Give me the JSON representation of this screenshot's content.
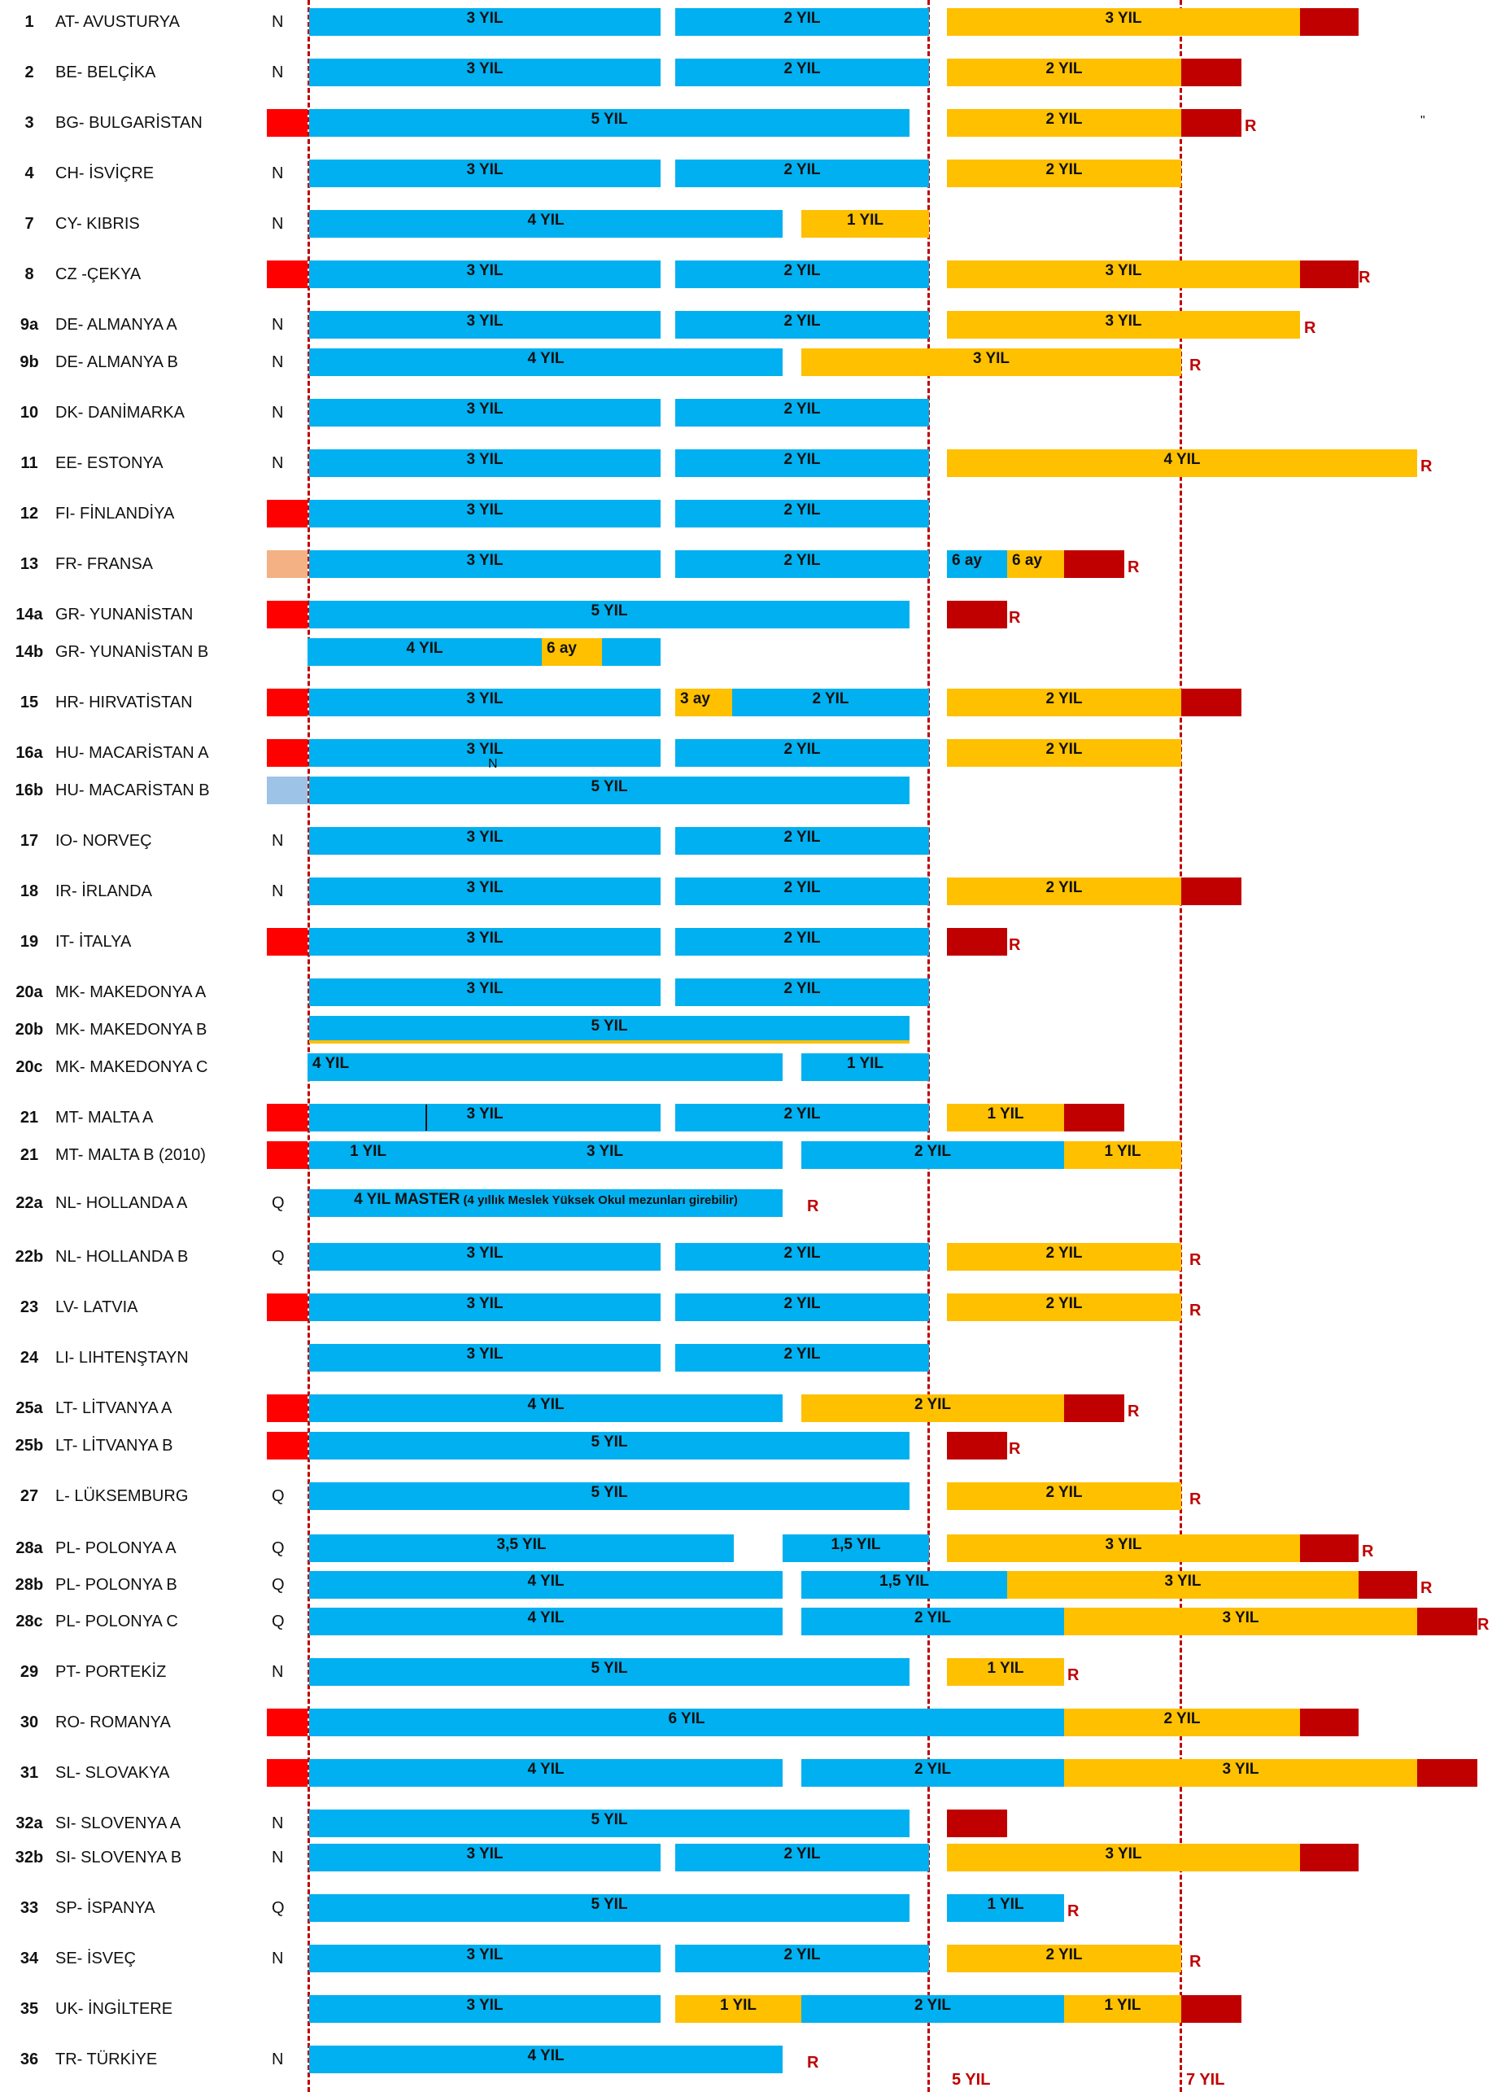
{
  "colors": {
    "education": "#00b0f0",
    "practice": "#ffc000",
    "exam": "#c00000",
    "prereq": "#ff0000",
    "prereq_fr": "#f4b183",
    "prereq_hu": "#9dc3e6",
    "guide": "#c00000"
  },
  "axis": {
    "labels": [
      {
        "key": "5",
        "text": "5 YIL"
      },
      {
        "key": "7",
        "text": "7 YIL"
      }
    ]
  },
  "stray_marks": [
    {
      "id": "quote",
      "text": "\""
    },
    {
      "id": "n",
      "text": "N"
    }
  ],
  "rows": [
    {
      "num": "1",
      "name": "AT- AVUSTURYA",
      "code": "N",
      "segs": [
        {
          "type": "education",
          "label": "3 YIL"
        },
        {
          "type": "education",
          "label": "2 YIL"
        },
        {
          "type": "practice",
          "label": "3 YIL"
        },
        {
          "type": "exam",
          "label": ""
        }
      ],
      "r": ""
    },
    {
      "num": "2",
      "name": "BE- BELÇİKA",
      "code": "N",
      "segs": [
        {
          "type": "education",
          "label": "3 YIL"
        },
        {
          "type": "education",
          "label": "2 YIL"
        },
        {
          "type": "practice",
          "label": "2 YIL"
        },
        {
          "type": "exam",
          "label": ""
        }
      ],
      "r": ""
    },
    {
      "num": "3",
      "name": "BG- BULGARİSTAN",
      "code": "",
      "segs": [
        {
          "type": "prereq",
          "label": ""
        },
        {
          "type": "education",
          "label": "5 YIL"
        },
        {
          "type": "practice",
          "label": "2 YIL"
        },
        {
          "type": "exam",
          "label": ""
        }
      ],
      "r": "R"
    },
    {
      "num": "4",
      "name": "CH- İSVİÇRE",
      "code": "N",
      "segs": [
        {
          "type": "education",
          "label": "3 YIL"
        },
        {
          "type": "education",
          "label": "2 YIL"
        },
        {
          "type": "practice",
          "label": "2 YIL"
        }
      ],
      "r": ""
    },
    {
      "num": "7",
      "name": "CY- KIBRIS",
      "code": "N",
      "segs": [
        {
          "type": "education",
          "label": "4 YIL"
        },
        {
          "type": "practice",
          "label": "1 YIL"
        }
      ],
      "r": ""
    },
    {
      "num": "8",
      "name": "CZ -ÇEKYA",
      "code": "",
      "segs": [
        {
          "type": "prereq",
          "label": ""
        },
        {
          "type": "education",
          "label": "3 YIL"
        },
        {
          "type": "education",
          "label": "2 YIL"
        },
        {
          "type": "practice",
          "label": "3 YIL"
        },
        {
          "type": "exam",
          "label": ""
        }
      ],
      "r": "R"
    },
    {
      "num": "9a",
      "name": "DE- ALMANYA A",
      "code": "N",
      "segs": [
        {
          "type": "education",
          "label": "3 YIL"
        },
        {
          "type": "education",
          "label": "2 YIL"
        },
        {
          "type": "practice",
          "label": "3 YIL"
        }
      ],
      "r": "R"
    },
    {
      "num": "9b",
      "name": "DE- ALMANYA B",
      "code": "N",
      "segs": [
        {
          "type": "education",
          "label": "4 YIL"
        },
        {
          "type": "practice",
          "label": "3 YIL"
        }
      ],
      "r": "R"
    },
    {
      "num": "10",
      "name": "DK- DANİMARKA",
      "code": "N",
      "segs": [
        {
          "type": "education",
          "label": "3 YIL"
        },
        {
          "type": "education",
          "label": "2 YIL"
        }
      ],
      "r": ""
    },
    {
      "num": "11",
      "name": "EE- ESTONYA",
      "code": "N",
      "segs": [
        {
          "type": "education",
          "label": "3 YIL"
        },
        {
          "type": "education",
          "label": "2 YIL"
        },
        {
          "type": "practice",
          "label": "4  YIL"
        }
      ],
      "r": "R"
    },
    {
      "num": "12",
      "name": "FI- FİNLANDİYA",
      "code": "",
      "segs": [
        {
          "type": "prereq",
          "label": ""
        },
        {
          "type": "education",
          "label": "3 YIL"
        },
        {
          "type": "education",
          "label": "2 YIL"
        }
      ],
      "r": ""
    },
    {
      "num": "13",
      "name": "FR- FRANSA",
      "code": "",
      "segs": [
        {
          "type": "prereq_fr",
          "label": ""
        },
        {
          "type": "education",
          "label": "3 YIL"
        },
        {
          "type": "education",
          "label": "2 YIL"
        },
        {
          "type": "education",
          "label": "6 ay"
        },
        {
          "type": "practice",
          "label": "6 ay"
        },
        {
          "type": "exam",
          "label": ""
        }
      ],
      "r": "R"
    },
    {
      "num": "14a",
      "name": "GR- YUNANİSTAN",
      "code": "",
      "segs": [
        {
          "type": "prereq",
          "label": ""
        },
        {
          "type": "education",
          "label": "5 YIL"
        },
        {
          "type": "exam",
          "label": ""
        }
      ],
      "r": "R"
    },
    {
      "num": "14b",
      "name": "GR- YUNANİSTAN B",
      "code": "",
      "segs": [
        {
          "type": "education",
          "label": "4 YIL"
        },
        {
          "type": "practice",
          "label": "6 ay"
        },
        {
          "type": "education",
          "label": ""
        }
      ],
      "r": ""
    },
    {
      "num": "15",
      "name": "HR- HIRVATİSTAN",
      "code": "",
      "segs": [
        {
          "type": "prereq",
          "label": ""
        },
        {
          "type": "education",
          "label": "3 YIL"
        },
        {
          "type": "practice",
          "label": "3 ay"
        },
        {
          "type": "education",
          "label": "2 YIL"
        },
        {
          "type": "practice",
          "label": "2 YIL"
        },
        {
          "type": "exam",
          "label": ""
        }
      ],
      "r": ""
    },
    {
      "num": "16a",
      "name": "HU- MACARİSTAN A",
      "code": "",
      "segs": [
        {
          "type": "prereq",
          "label": ""
        },
        {
          "type": "education",
          "label": "3 YIL"
        },
        {
          "type": "education",
          "label": "2 YIL"
        },
        {
          "type": "practice",
          "label": "2 YIL"
        }
      ],
      "r": ""
    },
    {
      "num": "16b",
      "name": "HU- MACARİSTAN B",
      "code": "",
      "segs": [
        {
          "type": "prereq_hu",
          "label": ""
        },
        {
          "type": "education",
          "label": "5 YIL"
        }
      ],
      "r": ""
    },
    {
      "num": "17",
      "name": "IO- NORVEÇ",
      "code": "N",
      "segs": [
        {
          "type": "education",
          "label": "3 YIL"
        },
        {
          "type": "education",
          "label": "2 YIL"
        }
      ],
      "r": ""
    },
    {
      "num": "18",
      "name": "IR- İRLANDA",
      "code": "N",
      "segs": [
        {
          "type": "education",
          "label": "3 YIL"
        },
        {
          "type": "education",
          "label": "2 YIL"
        },
        {
          "type": "practice",
          "label": "2 YIL"
        },
        {
          "type": "exam",
          "label": ""
        }
      ],
      "r": ""
    },
    {
      "num": "19",
      "name": "IT- İTALYA",
      "code": "",
      "segs": [
        {
          "type": "prereq",
          "label": ""
        },
        {
          "type": "education",
          "label": "3 YIL"
        },
        {
          "type": "education",
          "label": "2 YIL"
        },
        {
          "type": "exam",
          "label": ""
        }
      ],
      "r": "R"
    },
    {
      "num": "20a",
      "name": "MK- MAKEDONYA A",
      "code": "",
      "segs": [
        {
          "type": "education",
          "label": "3 YIL"
        },
        {
          "type": "education",
          "label": "2 YIL"
        }
      ],
      "r": ""
    },
    {
      "num": "20b",
      "name": "MK- MAKEDONYA B",
      "code": "",
      "segs": [
        {
          "type": "education",
          "label": "5 YIL"
        }
      ],
      "r": ""
    },
    {
      "num": "20c",
      "name": "MK- MAKEDONYA C",
      "code": "",
      "segs": [
        {
          "type": "education",
          "label": "4 YIL"
        },
        {
          "type": "education",
          "label": "1 YIL"
        }
      ],
      "r": ""
    },
    {
      "num": "21",
      "name": "MT- MALTA A",
      "code": "",
      "segs": [
        {
          "type": "prereq",
          "label": ""
        },
        {
          "type": "education",
          "label": "3 YIL"
        },
        {
          "type": "education",
          "label": "2 YIL"
        },
        {
          "type": "practice",
          "label": "1 YIL"
        },
        {
          "type": "exam",
          "label": ""
        }
      ],
      "r": ""
    },
    {
      "num": "21",
      "name": "MT- MALTA B (2010)",
      "code": "",
      "segs": [
        {
          "type": "prereq",
          "label": ""
        },
        {
          "type": "education",
          "label": "1 YIL"
        },
        {
          "type": "education",
          "label": "3 YIL"
        },
        {
          "type": "education",
          "label": "2 YIL"
        },
        {
          "type": "practice",
          "label": "1 YIL"
        }
      ],
      "r": ""
    },
    {
      "num": "22a",
      "name": "NL- HOLLANDA A",
      "code": "Q",
      "segs": [
        {
          "type": "education",
          "label": "4 YIL  MASTER",
          "sub": " (4 yıllık Meslek Yüksek Okul mezunları girebilir)"
        }
      ],
      "r": "R"
    },
    {
      "num": "22b",
      "name": "NL- HOLLANDA B",
      "code": "Q",
      "segs": [
        {
          "type": "education",
          "label": "3 YIL"
        },
        {
          "type": "education",
          "label": "2 YIL"
        },
        {
          "type": "practice",
          "label": "2 YIL"
        }
      ],
      "r": "R"
    },
    {
      "num": "23",
      "name": "LV- LATVIA",
      "code": "",
      "segs": [
        {
          "type": "prereq",
          "label": ""
        },
        {
          "type": "education",
          "label": "3 YIL"
        },
        {
          "type": "education",
          "label": "2 YIL"
        },
        {
          "type": "practice",
          "label": "2 YIL"
        }
      ],
      "r": "R"
    },
    {
      "num": "24",
      "name": "LI- LIHTENŞTAYN",
      "code": "",
      "segs": [
        {
          "type": "education",
          "label": "3 YIL"
        },
        {
          "type": "education",
          "label": "2 YIL"
        }
      ],
      "r": ""
    },
    {
      "num": "25a",
      "name": "LT- LİTVANYA A",
      "code": "",
      "segs": [
        {
          "type": "prereq",
          "label": ""
        },
        {
          "type": "education",
          "label": "4 YIL"
        },
        {
          "type": "practice",
          "label": "2 YIL"
        },
        {
          "type": "exam",
          "label": ""
        }
      ],
      "r": "R"
    },
    {
      "num": "25b",
      "name": "LT- LİTVANYA B",
      "code": "",
      "segs": [
        {
          "type": "prereq",
          "label": ""
        },
        {
          "type": "education",
          "label": "5 YIL"
        },
        {
          "type": "exam",
          "label": ""
        }
      ],
      "r": "R"
    },
    {
      "num": "27",
      "name": "L- LÜKSEMBURG",
      "code": "Q",
      "segs": [
        {
          "type": "education",
          "label": "5 YIL"
        },
        {
          "type": "practice",
          "label": "2 YIL"
        }
      ],
      "r": "R"
    },
    {
      "num": "28a",
      "name": "PL- POLONYA A",
      "code": "Q",
      "segs": [
        {
          "type": "education",
          "label": "3,5 YIL"
        },
        {
          "type": "education",
          "label": "1,5 YIL"
        },
        {
          "type": "practice",
          "label": "3 YIL"
        },
        {
          "type": "exam",
          "label": ""
        }
      ],
      "r": "R"
    },
    {
      "num": "28b",
      "name": "PL- POLONYA B",
      "code": "Q",
      "segs": [
        {
          "type": "education",
          "label": "4 YIL"
        },
        {
          "type": "education",
          "label": "1,5 YIL"
        },
        {
          "type": "practice",
          "label": "3 YIL"
        },
        {
          "type": "exam",
          "label": ""
        }
      ],
      "r": "R"
    },
    {
      "num": "28c",
      "name": "PL- POLONYA C",
      "code": "Q",
      "segs": [
        {
          "type": "education",
          "label": "4 YIL"
        },
        {
          "type": "education",
          "label": "2 YIL"
        },
        {
          "type": "practice",
          "label": "3 YIL"
        },
        {
          "type": "exam",
          "label": ""
        }
      ],
      "r": "R"
    },
    {
      "num": "29",
      "name": "PT- PORTEKİZ",
      "code": "N",
      "segs": [
        {
          "type": "education",
          "label": "5 YIL"
        },
        {
          "type": "practice",
          "label": "1 YIL"
        }
      ],
      "r": "R"
    },
    {
      "num": "30",
      "name": "RO- ROMANYA",
      "code": "",
      "segs": [
        {
          "type": "prereq",
          "label": ""
        },
        {
          "type": "education",
          "label": "6 YIL"
        },
        {
          "type": "practice",
          "label": "2 YIL"
        },
        {
          "type": "exam",
          "label": ""
        }
      ],
      "r": ""
    },
    {
      "num": "31",
      "name": "SL- SLOVAKYA",
      "code": "",
      "segs": [
        {
          "type": "prereq",
          "label": ""
        },
        {
          "type": "education",
          "label": "4 YIL"
        },
        {
          "type": "education",
          "label": "2 YIL"
        },
        {
          "type": "practice",
          "label": "3 YIL"
        },
        {
          "type": "exam",
          "label": ""
        }
      ],
      "r": ""
    },
    {
      "num": "32a",
      "name": "SI- SLOVENYA A",
      "code": "N",
      "segs": [
        {
          "type": "education",
          "label": "5 YIL"
        },
        {
          "type": "exam",
          "label": ""
        }
      ],
      "r": ""
    },
    {
      "num": "32b",
      "name": "SI- SLOVENYA B",
      "code": "N",
      "segs": [
        {
          "type": "education",
          "label": "3 YIL"
        },
        {
          "type": "education",
          "label": "2 YIL"
        },
        {
          "type": "practice",
          "label": "3 YIL"
        },
        {
          "type": "exam",
          "label": ""
        }
      ],
      "r": ""
    },
    {
      "num": "33",
      "name": "SP- İSPANYA",
      "code": "Q",
      "segs": [
        {
          "type": "education",
          "label": "5 YIL"
        },
        {
          "type": "education",
          "label": "1 YIL"
        }
      ],
      "r": "R"
    },
    {
      "num": "34",
      "name": "SE- İSVEÇ",
      "code": "N",
      "segs": [
        {
          "type": "education",
          "label": "3 YIL"
        },
        {
          "type": "education",
          "label": "2 YIL"
        },
        {
          "type": "practice",
          "label": "2 YIL"
        }
      ],
      "r": "R"
    },
    {
      "num": "35",
      "name": "UK- İNGİLTERE",
      "code": "",
      "segs": [
        {
          "type": "education",
          "label": "3 YIL"
        },
        {
          "type": "practice",
          "label": "1 YIL"
        },
        {
          "type": "education",
          "label": "2 YIL"
        },
        {
          "type": "practice",
          "label": "1 YIL"
        },
        {
          "type": "exam",
          "label": ""
        }
      ],
      "r": ""
    },
    {
      "num": "36",
      "name": "TR- TÜRKİYE",
      "code": "N",
      "segs": [
        {
          "type": "education",
          "label": "4 YIL"
        }
      ],
      "r": "R"
    }
  ]
}
